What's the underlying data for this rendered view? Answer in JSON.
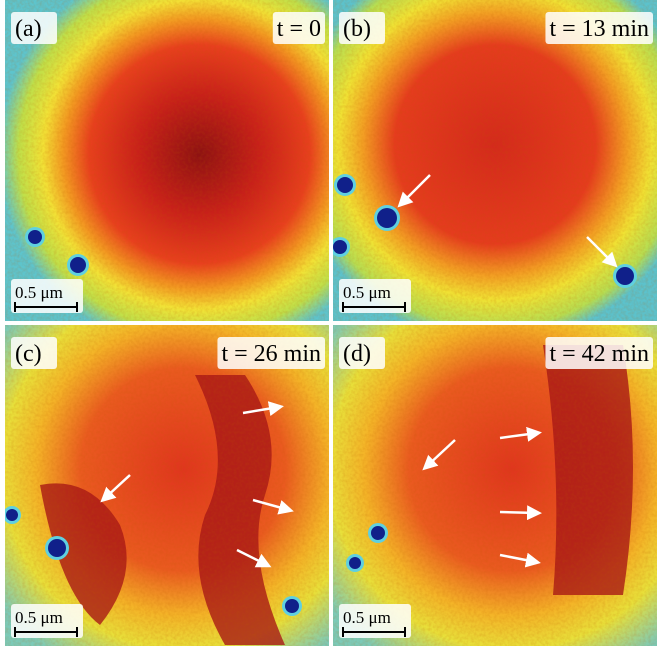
{
  "panels": [
    {
      "label": "(a)",
      "time": "t = 0",
      "scale_bar": "0.5 μm"
    },
    {
      "label": "(b)",
      "time": "t = 13 min",
      "scale_bar": "0.5 μm"
    },
    {
      "label": "(c)",
      "time": "t = 26 min",
      "scale_bar": "0.5 μm"
    },
    {
      "label": "(d)",
      "time": "t = 42 min",
      "scale_bar": "0.5 μm"
    }
  ]
}
